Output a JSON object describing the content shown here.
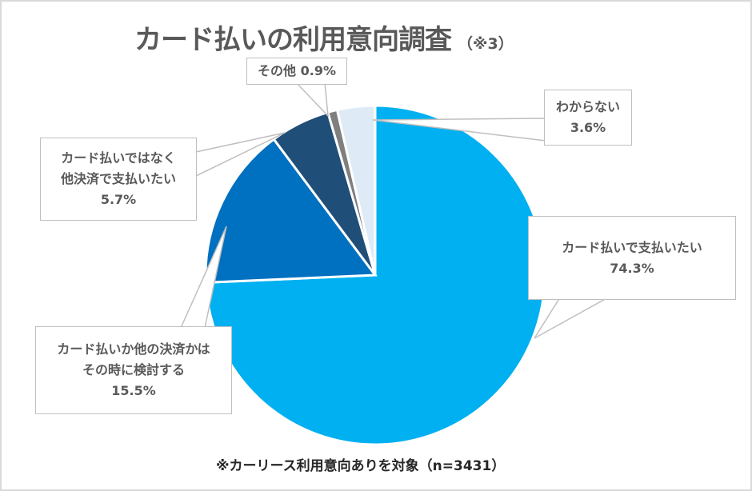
{
  "title": {
    "main": "カード払いの利用意向調査",
    "note": "（※3）"
  },
  "footnote": "※カーリース利用意向ありを対象（n=3431）",
  "labels": [
    {
      "line1": "カード払いで支払いたい",
      "line2": "",
      "value": "74.3%"
    },
    {
      "line1": "カード払いか他の決済かは",
      "line2": "その時に検討する",
      "value": "15.5%"
    },
    {
      "line1": "カード払いではなく",
      "line2": "他決済で支払いたい",
      "value": "5.7%"
    },
    {
      "line1": "その他",
      "line2": "",
      "value": "0.9%"
    },
    {
      "line1": "わからない",
      "line2": "",
      "value": "3.6%"
    }
  ],
  "chart_data": {
    "type": "pie",
    "title": "カード払いの利用意向調査（※3）",
    "subtitle": "※カーリース利用意向ありを対象（n=3431）",
    "categories": [
      "カード払いで支払いたい",
      "カード払いか他の決済かはその時に検討する",
      "カード払いではなく他決済で支払いたい",
      "その他",
      "わからない"
    ],
    "values": [
      74.3,
      15.5,
      5.7,
      0.9,
      3.6
    ],
    "unit": "%",
    "colors": [
      "#00B0F0",
      "#0070C0",
      "#1F4E79",
      "#7F7F7F",
      "#DEEBF7"
    ],
    "start_angle": "12 o'clock, clockwise",
    "legend": "none (callout data labels)"
  }
}
